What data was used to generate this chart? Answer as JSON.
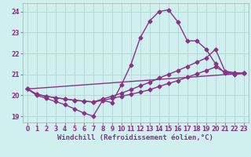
{
  "background_color": "#cff0ee",
  "grid_color": "#b0d8d0",
  "line_color": "#883388",
  "xlim": [
    -0.5,
    23.5
  ],
  "ylim": [
    18.7,
    24.4
  ],
  "xticks": [
    0,
    1,
    2,
    3,
    4,
    5,
    6,
    7,
    8,
    9,
    10,
    11,
    12,
    13,
    14,
    15,
    16,
    17,
    18,
    19,
    20,
    21,
    22,
    23
  ],
  "yticks": [
    19,
    20,
    21,
    22,
    23,
    24
  ],
  "line1_x": [
    0,
    1,
    2,
    3,
    4,
    5,
    6,
    7,
    8,
    9,
    10,
    11,
    12,
    13,
    14,
    15,
    16,
    17,
    18,
    19,
    20,
    21,
    22,
    23
  ],
  "line1_y": [
    20.3,
    20.0,
    19.85,
    19.7,
    19.55,
    19.35,
    19.15,
    19.0,
    19.75,
    19.65,
    20.5,
    21.45,
    22.75,
    23.55,
    24.0,
    24.08,
    23.5,
    22.6,
    22.6,
    22.2,
    21.5,
    21.05,
    21.0,
    21.05
  ],
  "line2_x": [
    0,
    1,
    2,
    3,
    4,
    5,
    6,
    7,
    8,
    9,
    10,
    11,
    12,
    13,
    14,
    15,
    16,
    17,
    18,
    19,
    20,
    21,
    22,
    23
  ],
  "line2_y": [
    20.3,
    20.05,
    19.95,
    19.88,
    19.82,
    19.76,
    19.72,
    19.68,
    19.82,
    19.95,
    20.1,
    20.27,
    20.45,
    20.62,
    20.82,
    21.0,
    21.18,
    21.38,
    21.58,
    21.78,
    22.2,
    21.15,
    21.08,
    21.05
  ],
  "line3_x": [
    0,
    1,
    2,
    3,
    4,
    5,
    6,
    7,
    8,
    9,
    10,
    11,
    12,
    13,
    14,
    15,
    16,
    17,
    18,
    19,
    20,
    21,
    22,
    23
  ],
  "line3_y": [
    20.3,
    20.05,
    19.95,
    19.88,
    19.82,
    19.76,
    19.72,
    19.68,
    19.75,
    19.85,
    19.95,
    20.05,
    20.15,
    20.26,
    20.42,
    20.56,
    20.7,
    20.86,
    21.02,
    21.18,
    21.35,
    21.1,
    21.05,
    21.05
  ],
  "line4_x": [
    0,
    23
  ],
  "line4_y": [
    20.3,
    21.05
  ],
  "marker": "D",
  "markersize": 2.5,
  "linewidth": 1.0,
  "tick_fontsize": 5.5,
  "label_fontsize": 6.5
}
